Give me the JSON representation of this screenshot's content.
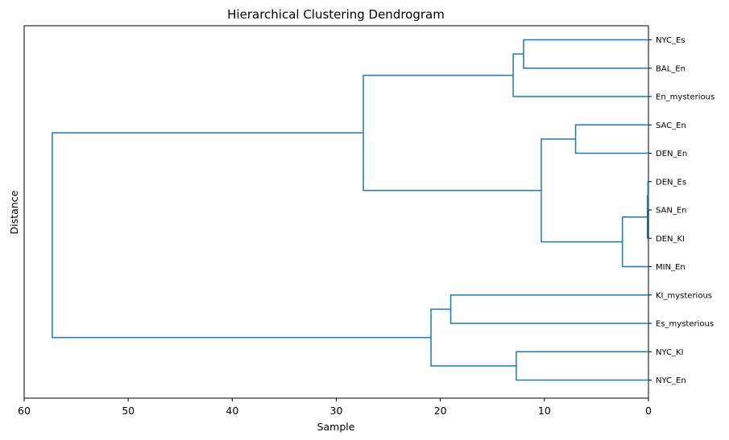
{
  "chart_data": {
    "type": "dendrogram",
    "title": "Hierarchical Clustering Dendrogram",
    "xlabel": "Sample",
    "ylabel": "Distance",
    "orientation": "left",
    "xlim": [
      60,
      0
    ],
    "xticks": [
      60,
      50,
      40,
      30,
      20,
      10,
      0
    ],
    "grid": false,
    "line_color": "#1f77b4",
    "leaves": [
      "NYC_Es",
      "BAL_En",
      "En_mysterious",
      "SAC_En",
      "DEN_En",
      "DEN_Es",
      "SAN_En",
      "DEN_KI",
      "MIN_En",
      "KI_mysterious",
      "Es_mysterious",
      "NYC_KI",
      "NYC_En"
    ],
    "merges": [
      {
        "a": "L:DEN_Es",
        "b": "L:SAN_En",
        "distance": 0.05
      },
      {
        "a": "M:0",
        "b": "L:DEN_KI",
        "distance": 0.1
      },
      {
        "a": "M:1",
        "b": "L:MIN_En",
        "distance": 2.5
      },
      {
        "a": "L:SAC_En",
        "b": "L:DEN_En",
        "distance": 7.0
      },
      {
        "a": "M:3",
        "b": "M:2",
        "distance": 10.3
      },
      {
        "a": "L:NYC_Es",
        "b": "L:BAL_En",
        "distance": 12.0
      },
      {
        "a": "M:5",
        "b": "L:En_mysterious",
        "distance": 13.0
      },
      {
        "a": "M:6",
        "b": "M:4",
        "distance": 27.4
      },
      {
        "a": "L:KI_mysterious",
        "b": "L:Es_mysterious",
        "distance": 19.0
      },
      {
        "a": "L:NYC_KI",
        "b": "L:NYC_En",
        "distance": 12.7
      },
      {
        "a": "M:8",
        "b": "M:9",
        "distance": 20.9
      },
      {
        "a": "M:7",
        "b": "M:10",
        "distance": 57.3
      }
    ]
  }
}
